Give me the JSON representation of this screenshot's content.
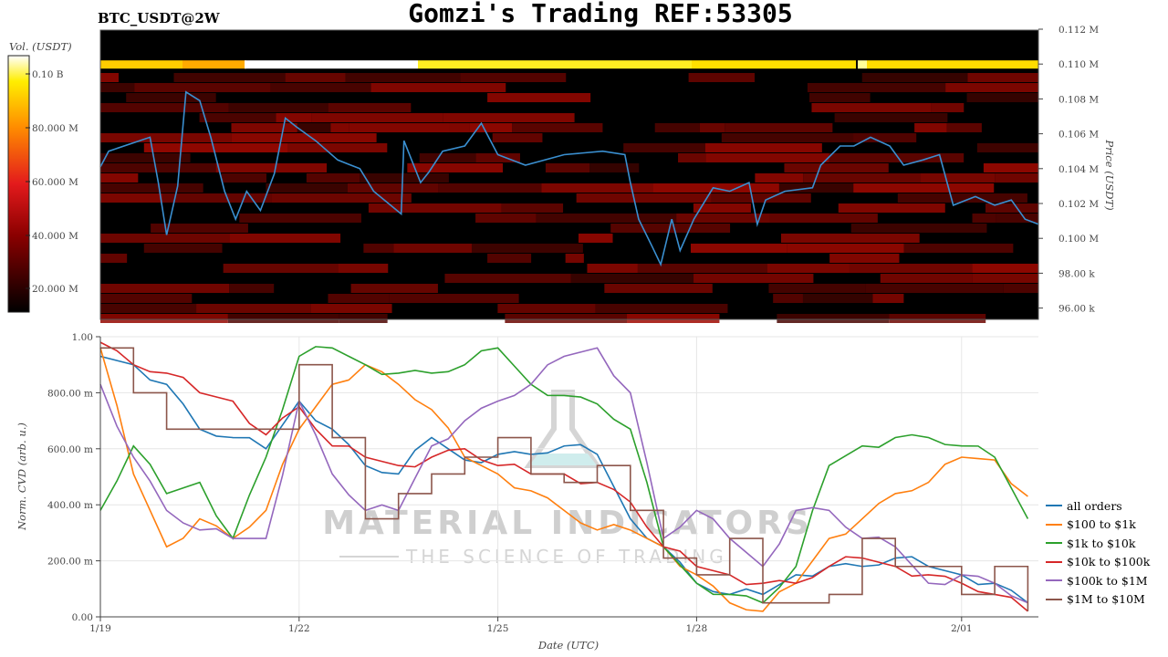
{
  "title": "Gomzi's Trading REF:53305",
  "symbol": "BTC_USDT@2W",
  "watermark": {
    "line1": "MATERIAL INDICATORS",
    "line2": "THE SCIENCE OF TRADING"
  },
  "chart_data": [
    {
      "type": "heatmap",
      "title": "",
      "ylabel": "Price (USDT)",
      "colorbar_label": "Vol. (USDT)",
      "colorbar_ticks": [
        "0.10 B",
        "80.000 M",
        "60.000 M",
        "40.000 M",
        "20.000 M"
      ],
      "colorbar_values": [
        100000000,
        80000000,
        60000000,
        40000000,
        20000000
      ],
      "colorscale": [
        "#000000",
        "#8b0000",
        "#e31a1c",
        "#ff8c00",
        "#ffee00",
        "#ffffff"
      ],
      "y_ticks": [
        "0.112 M",
        "0.110 M",
        "0.108 M",
        "0.106 M",
        "0.104 M",
        "0.102 M",
        "0.100 M",
        "98.00 k",
        "96.00 k"
      ],
      "y_tick_values": [
        112000,
        110000,
        108000,
        106000,
        104000,
        102000,
        100000,
        98000,
        96000
      ],
      "ylim": [
        95000,
        112000
      ],
      "price_line_color": "#3a8fd0",
      "price_series": {
        "x": [
          "1/19 00:00",
          "1/19 03:00",
          "1/19 18:00",
          "1/19 21:00",
          "1/20 00:00",
          "1/20 04:00",
          "1/20 07:00",
          "1/20 12:00",
          "1/20 16:00",
          "1/20 21:00",
          "1/21 01:00",
          "1/21 05:00",
          "1/21 10:00",
          "1/21 15:00",
          "1/21 19:00",
          "1/21 23:00",
          "1/22 06:00",
          "1/22 14:00",
          "1/22 22:00",
          "1/23 03:00",
          "1/23 13:00",
          "1/23 14:00",
          "1/23 20:00",
          "1/23 23:00",
          "1/24 04:00",
          "1/24 12:00",
          "1/24 18:00",
          "1/25 00:00",
          "1/25 10:00",
          "1/26 00:00",
          "1/26 14:00",
          "1/26 22:00",
          "1/27 00:00",
          "1/27 03:00",
          "1/27 08:00",
          "1/27 11:00",
          "1/27 15:00",
          "1/27 18:00",
          "1/27 23:00",
          "1/28 06:00",
          "1/28 12:00",
          "1/28 19:00",
          "1/28 22:00",
          "1/29 01:00",
          "1/29 08:00",
          "1/29 18:00",
          "1/29 21:00",
          "1/30 04:00",
          "1/30 09:00",
          "1/30 15:00",
          "1/30 22:00",
          "1/31 03:00",
          "1/31 10:00",
          "1/31 16:00",
          "1/31 21:00",
          "2/01 05:00",
          "2/01 12:00",
          "2/01 18:00",
          "2/01 23:00",
          "2/02 04:00"
        ],
        "y": [
          104100,
          105000,
          105800,
          103200,
          100200,
          103000,
          108400,
          107900,
          105800,
          102700,
          101100,
          102700,
          101600,
          103700,
          106900,
          106400,
          105600,
          104500,
          104000,
          102700,
          101400,
          105600,
          103200,
          103800,
          105000,
          105300,
          106600,
          104800,
          104200,
          104800,
          105000,
          104800,
          103200,
          101100,
          99500,
          98500,
          101100,
          99300,
          101100,
          102900,
          102700,
          103200,
          100800,
          102200,
          102700,
          102900,
          104200,
          105300,
          105300,
          105800,
          105300,
          104200,
          104500,
          104800,
          101900,
          102400,
          101900,
          102200,
          101100,
          100800
        ]
      }
    },
    {
      "type": "line",
      "title": "",
      "xlabel": "Date (UTC)",
      "ylabel": "Norm. CVD (arb. u.)",
      "x_ticks": [
        "1/19",
        "1/22",
        "1/25",
        "1/28",
        "2/01"
      ],
      "y_ticks": [
        "0.00",
        "200.00 m",
        "400.00 m",
        "600.00 m",
        "800.00 m",
        "1.00"
      ],
      "y_tick_values": [
        0,
        0.2,
        0.4,
        0.6,
        0.8,
        1.0
      ],
      "ylim": [
        0,
        1
      ],
      "xlim": [
        "1/19 00:00",
        "2/02 04:00"
      ],
      "grid": true,
      "legend_position": "right",
      "x": [
        "1/19 00:00",
        "1/19 12:00",
        "1/20 00:00",
        "1/20 12:00",
        "1/21 00:00",
        "1/21 12:00",
        "1/22 00:00",
        "1/22 12:00",
        "1/23 00:00",
        "1/23 12:00",
        "1/24 00:00",
        "1/24 12:00",
        "1/25 00:00",
        "1/25 12:00",
        "1/26 00:00",
        "1/26 12:00",
        "1/27 00:00",
        "1/27 12:00",
        "1/28 00:00",
        "1/28 12:00",
        "1/29 00:00",
        "1/29 12:00",
        "1/30 00:00",
        "1/30 12:00",
        "1/31 00:00",
        "1/31 12:00",
        "2/01 00:00",
        "2/01 12:00",
        "2/02 00:00"
      ],
      "series": [
        {
          "name": "all orders",
          "color": "#1f77b4",
          "values": [
            0.93,
            0.9,
            0.83,
            0.67,
            0.64,
            0.6,
            0.77,
            0.67,
            0.54,
            0.51,
            0.64,
            0.56,
            0.58,
            0.58,
            0.61,
            0.58,
            0.35,
            0.25,
            0.12,
            0.08,
            0.08,
            0.15,
            0.18,
            0.18,
            0.21,
            0.18,
            0.15,
            0.12,
            0.05
          ]
        },
        {
          "name": "$100 to $1k",
          "color": "#ff7f0e",
          "values": [
            0.96,
            0.51,
            0.25,
            0.35,
            0.28,
            0.38,
            0.67,
            0.83,
            0.9,
            0.83,
            0.74,
            0.57,
            0.51,
            0.45,
            0.38,
            0.31,
            0.31,
            0.25,
            0.15,
            0.05,
            0.02,
            0.12,
            0.28,
            0.35,
            0.44,
            0.48,
            0.57,
            0.56,
            0.43
          ]
        },
        {
          "name": "$1k to $10k",
          "color": "#2ca02c",
          "values": [
            0.38,
            0.61,
            0.44,
            0.48,
            0.28,
            0.57,
            0.93,
            0.96,
            0.9,
            0.87,
            0.87,
            0.9,
            0.96,
            0.83,
            0.79,
            0.76,
            0.67,
            0.25,
            0.12,
            0.08,
            0.05,
            0.18,
            0.54,
            0.61,
            0.64,
            0.64,
            0.61,
            0.57,
            0.35
          ]
        },
        {
          "name": "$10k to $100k",
          "color": "#d62728",
          "values": [
            0.98,
            0.9,
            0.87,
            0.8,
            0.77,
            0.65,
            0.75,
            0.61,
            0.57,
            0.54,
            0.57,
            0.6,
            0.54,
            0.51,
            0.51,
            0.48,
            0.41,
            0.25,
            0.18,
            0.15,
            0.12,
            0.12,
            0.18,
            0.21,
            0.18,
            0.15,
            0.12,
            0.08,
            0.02
          ]
        },
        {
          "name": "$100k to $1M",
          "color": "#9467bd",
          "values": [
            0.83,
            0.57,
            0.38,
            0.31,
            0.28,
            0.28,
            0.77,
            0.51,
            0.38,
            0.38,
            0.61,
            0.7,
            0.77,
            0.83,
            0.93,
            0.96,
            0.8,
            0.28,
            0.38,
            0.28,
            0.18,
            0.38,
            0.38,
            0.28,
            0.25,
            0.12,
            0.15,
            0.12,
            0.05
          ]
        },
        {
          "name": "$1M to $10M",
          "color": "#8c564b",
          "step": true,
          "values": [
            0.96,
            0.8,
            0.67,
            0.67,
            0.67,
            0.67,
            0.9,
            0.64,
            0.35,
            0.44,
            0.51,
            0.57,
            0.64,
            0.51,
            0.48,
            0.54,
            0.38,
            0.21,
            0.15,
            0.28,
            0.05,
            0.05,
            0.08,
            0.28,
            0.18,
            0.18,
            0.08,
            0.18,
            0.02
          ]
        }
      ]
    }
  ]
}
